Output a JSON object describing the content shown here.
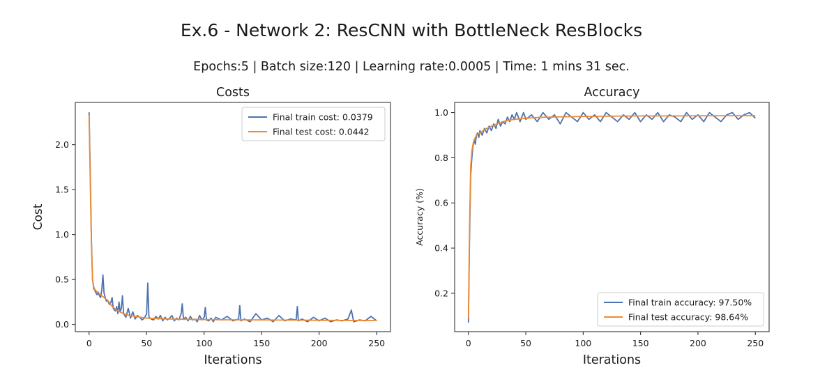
{
  "figure": {
    "suptitle": "Ex.6  - Network 2: ResCNN with BottleNeck ResBlocks",
    "subtitle": "Epochs:5 | Batch size:120 | Learning rate:0.0005 | Time: 1 mins 31 sec."
  },
  "colors": {
    "train": "#4c72b0",
    "test": "#f08a30"
  },
  "chart_data": [
    {
      "type": "line",
      "title": "Costs",
      "xlabel": "Iterations",
      "ylabel": "Cost",
      "xlim": [
        -12,
        262
      ],
      "ylim": [
        -0.08,
        2.47
      ],
      "xticks": [
        0,
        50,
        100,
        150,
        200,
        250
      ],
      "yticks": [
        0.0,
        0.5,
        1.0,
        1.5,
        2.0
      ],
      "grid": false,
      "legend_position": "top-right",
      "series": [
        {
          "name": "Final train cost: 0.0379",
          "key": "train",
          "x": [
            0,
            1,
            2,
            3,
            4,
            5,
            6,
            7,
            8,
            9,
            10,
            11,
            12,
            13,
            14,
            15,
            16,
            17,
            18,
            19,
            20,
            21,
            22,
            23,
            24,
            25,
            26,
            27,
            28,
            29,
            30,
            32,
            34,
            36,
            38,
            40,
            42,
            44,
            46,
            48,
            50,
            51,
            52,
            54,
            56,
            58,
            60,
            62,
            64,
            66,
            68,
            70,
            72,
            74,
            76,
            78,
            80,
            81,
            82,
            84,
            86,
            88,
            90,
            92,
            94,
            96,
            98,
            100,
            101,
            102,
            104,
            106,
            108,
            110,
            115,
            120,
            125,
            130,
            131,
            132,
            135,
            140,
            145,
            150,
            155,
            160,
            165,
            170,
            175,
            180,
            181,
            182,
            185,
            190,
            195,
            200,
            205,
            210,
            215,
            220,
            225,
            228,
            230,
            235,
            240,
            245,
            250
          ],
          "y": [
            2.36,
            1.7,
            0.95,
            0.5,
            0.4,
            0.38,
            0.35,
            0.33,
            0.36,
            0.32,
            0.3,
            0.38,
            0.55,
            0.35,
            0.3,
            0.26,
            0.27,
            0.24,
            0.22,
            0.25,
            0.3,
            0.18,
            0.16,
            0.15,
            0.2,
            0.12,
            0.25,
            0.14,
            0.18,
            0.32,
            0.12,
            0.08,
            0.18,
            0.07,
            0.14,
            0.06,
            0.1,
            0.08,
            0.05,
            0.07,
            0.12,
            0.46,
            0.08,
            0.06,
            0.05,
            0.09,
            0.06,
            0.1,
            0.04,
            0.08,
            0.05,
            0.07,
            0.1,
            0.04,
            0.07,
            0.05,
            0.12,
            0.23,
            0.06,
            0.08,
            0.04,
            0.09,
            0.05,
            0.06,
            0.03,
            0.1,
            0.05,
            0.08,
            0.19,
            0.05,
            0.04,
            0.07,
            0.03,
            0.08,
            0.05,
            0.09,
            0.04,
            0.06,
            0.21,
            0.04,
            0.06,
            0.03,
            0.12,
            0.05,
            0.07,
            0.03,
            0.1,
            0.04,
            0.06,
            0.05,
            0.2,
            0.04,
            0.06,
            0.03,
            0.08,
            0.04,
            0.07,
            0.03,
            0.05,
            0.04,
            0.06,
            0.16,
            0.03,
            0.05,
            0.04,
            0.09,
            0.04
          ]
        },
        {
          "name": "Final test cost: 0.0442",
          "key": "test",
          "x": [
            0,
            1,
            2,
            3,
            4,
            5,
            7,
            10,
            13,
            16,
            20,
            25,
            30,
            35,
            40,
            50,
            60,
            70,
            80,
            100,
            120,
            150,
            180,
            200,
            220,
            250
          ],
          "y": [
            2.33,
            1.6,
            0.9,
            0.5,
            0.42,
            0.39,
            0.36,
            0.33,
            0.3,
            0.27,
            0.2,
            0.15,
            0.12,
            0.1,
            0.09,
            0.07,
            0.065,
            0.06,
            0.058,
            0.055,
            0.052,
            0.05,
            0.048,
            0.046,
            0.045,
            0.044
          ]
        }
      ]
    },
    {
      "type": "line",
      "title": "Accuracy",
      "xlabel": "Iterations",
      "ylabel": "Accuracy (%)",
      "xlim": [
        -12,
        262
      ],
      "ylim": [
        0.03,
        1.045
      ],
      "xticks": [
        0,
        50,
        100,
        150,
        200,
        250
      ],
      "yticks": [
        0.2,
        0.4,
        0.6,
        0.8,
        1.0
      ],
      "grid": false,
      "legend_position": "bottom-right",
      "series": [
        {
          "name": "Final train accuracy: 97.50%",
          "key": "train",
          "x": [
            0,
            1,
            2,
            3,
            4,
            5,
            6,
            7,
            8,
            9,
            10,
            12,
            14,
            16,
            18,
            20,
            22,
            24,
            26,
            28,
            30,
            32,
            34,
            36,
            38,
            40,
            42,
            45,
            48,
            50,
            55,
            60,
            65,
            70,
            75,
            80,
            85,
            90,
            95,
            100,
            105,
            110,
            115,
            120,
            125,
            130,
            135,
            140,
            145,
            150,
            155,
            160,
            165,
            170,
            175,
            180,
            185,
            190,
            195,
            200,
            205,
            210,
            215,
            220,
            225,
            230,
            235,
            240,
            245,
            250
          ],
          "y": [
            0.07,
            0.45,
            0.72,
            0.8,
            0.85,
            0.88,
            0.86,
            0.9,
            0.91,
            0.89,
            0.92,
            0.9,
            0.93,
            0.91,
            0.94,
            0.92,
            0.95,
            0.93,
            0.97,
            0.94,
            0.96,
            0.95,
            0.98,
            0.96,
            0.99,
            0.97,
            1.0,
            0.96,
            1.0,
            0.97,
            0.99,
            0.96,
            1.0,
            0.97,
            0.99,
            0.95,
            1.0,
            0.98,
            0.96,
            1.0,
            0.97,
            0.99,
            0.96,
            1.0,
            0.98,
            0.96,
            0.99,
            0.97,
            1.0,
            0.96,
            0.99,
            0.97,
            1.0,
            0.96,
            0.99,
            0.98,
            0.96,
            1.0,
            0.97,
            0.99,
            0.96,
            1.0,
            0.98,
            0.96,
            0.99,
            1.0,
            0.97,
            0.99,
            1.0,
            0.975
          ]
        },
        {
          "name": "Final test accuracy: 98.64%",
          "key": "test",
          "x": [
            0,
            1,
            2,
            3,
            4,
            5,
            7,
            10,
            13,
            16,
            20,
            25,
            30,
            35,
            40,
            50,
            60,
            70,
            80,
            100,
            120,
            150,
            180,
            200,
            220,
            250
          ],
          "y": [
            0.09,
            0.5,
            0.76,
            0.83,
            0.86,
            0.88,
            0.9,
            0.91,
            0.92,
            0.93,
            0.94,
            0.95,
            0.96,
            0.965,
            0.97,
            0.975,
            0.978,
            0.98,
            0.981,
            0.983,
            0.984,
            0.985,
            0.985,
            0.986,
            0.986,
            0.9864
          ]
        }
      ]
    }
  ]
}
